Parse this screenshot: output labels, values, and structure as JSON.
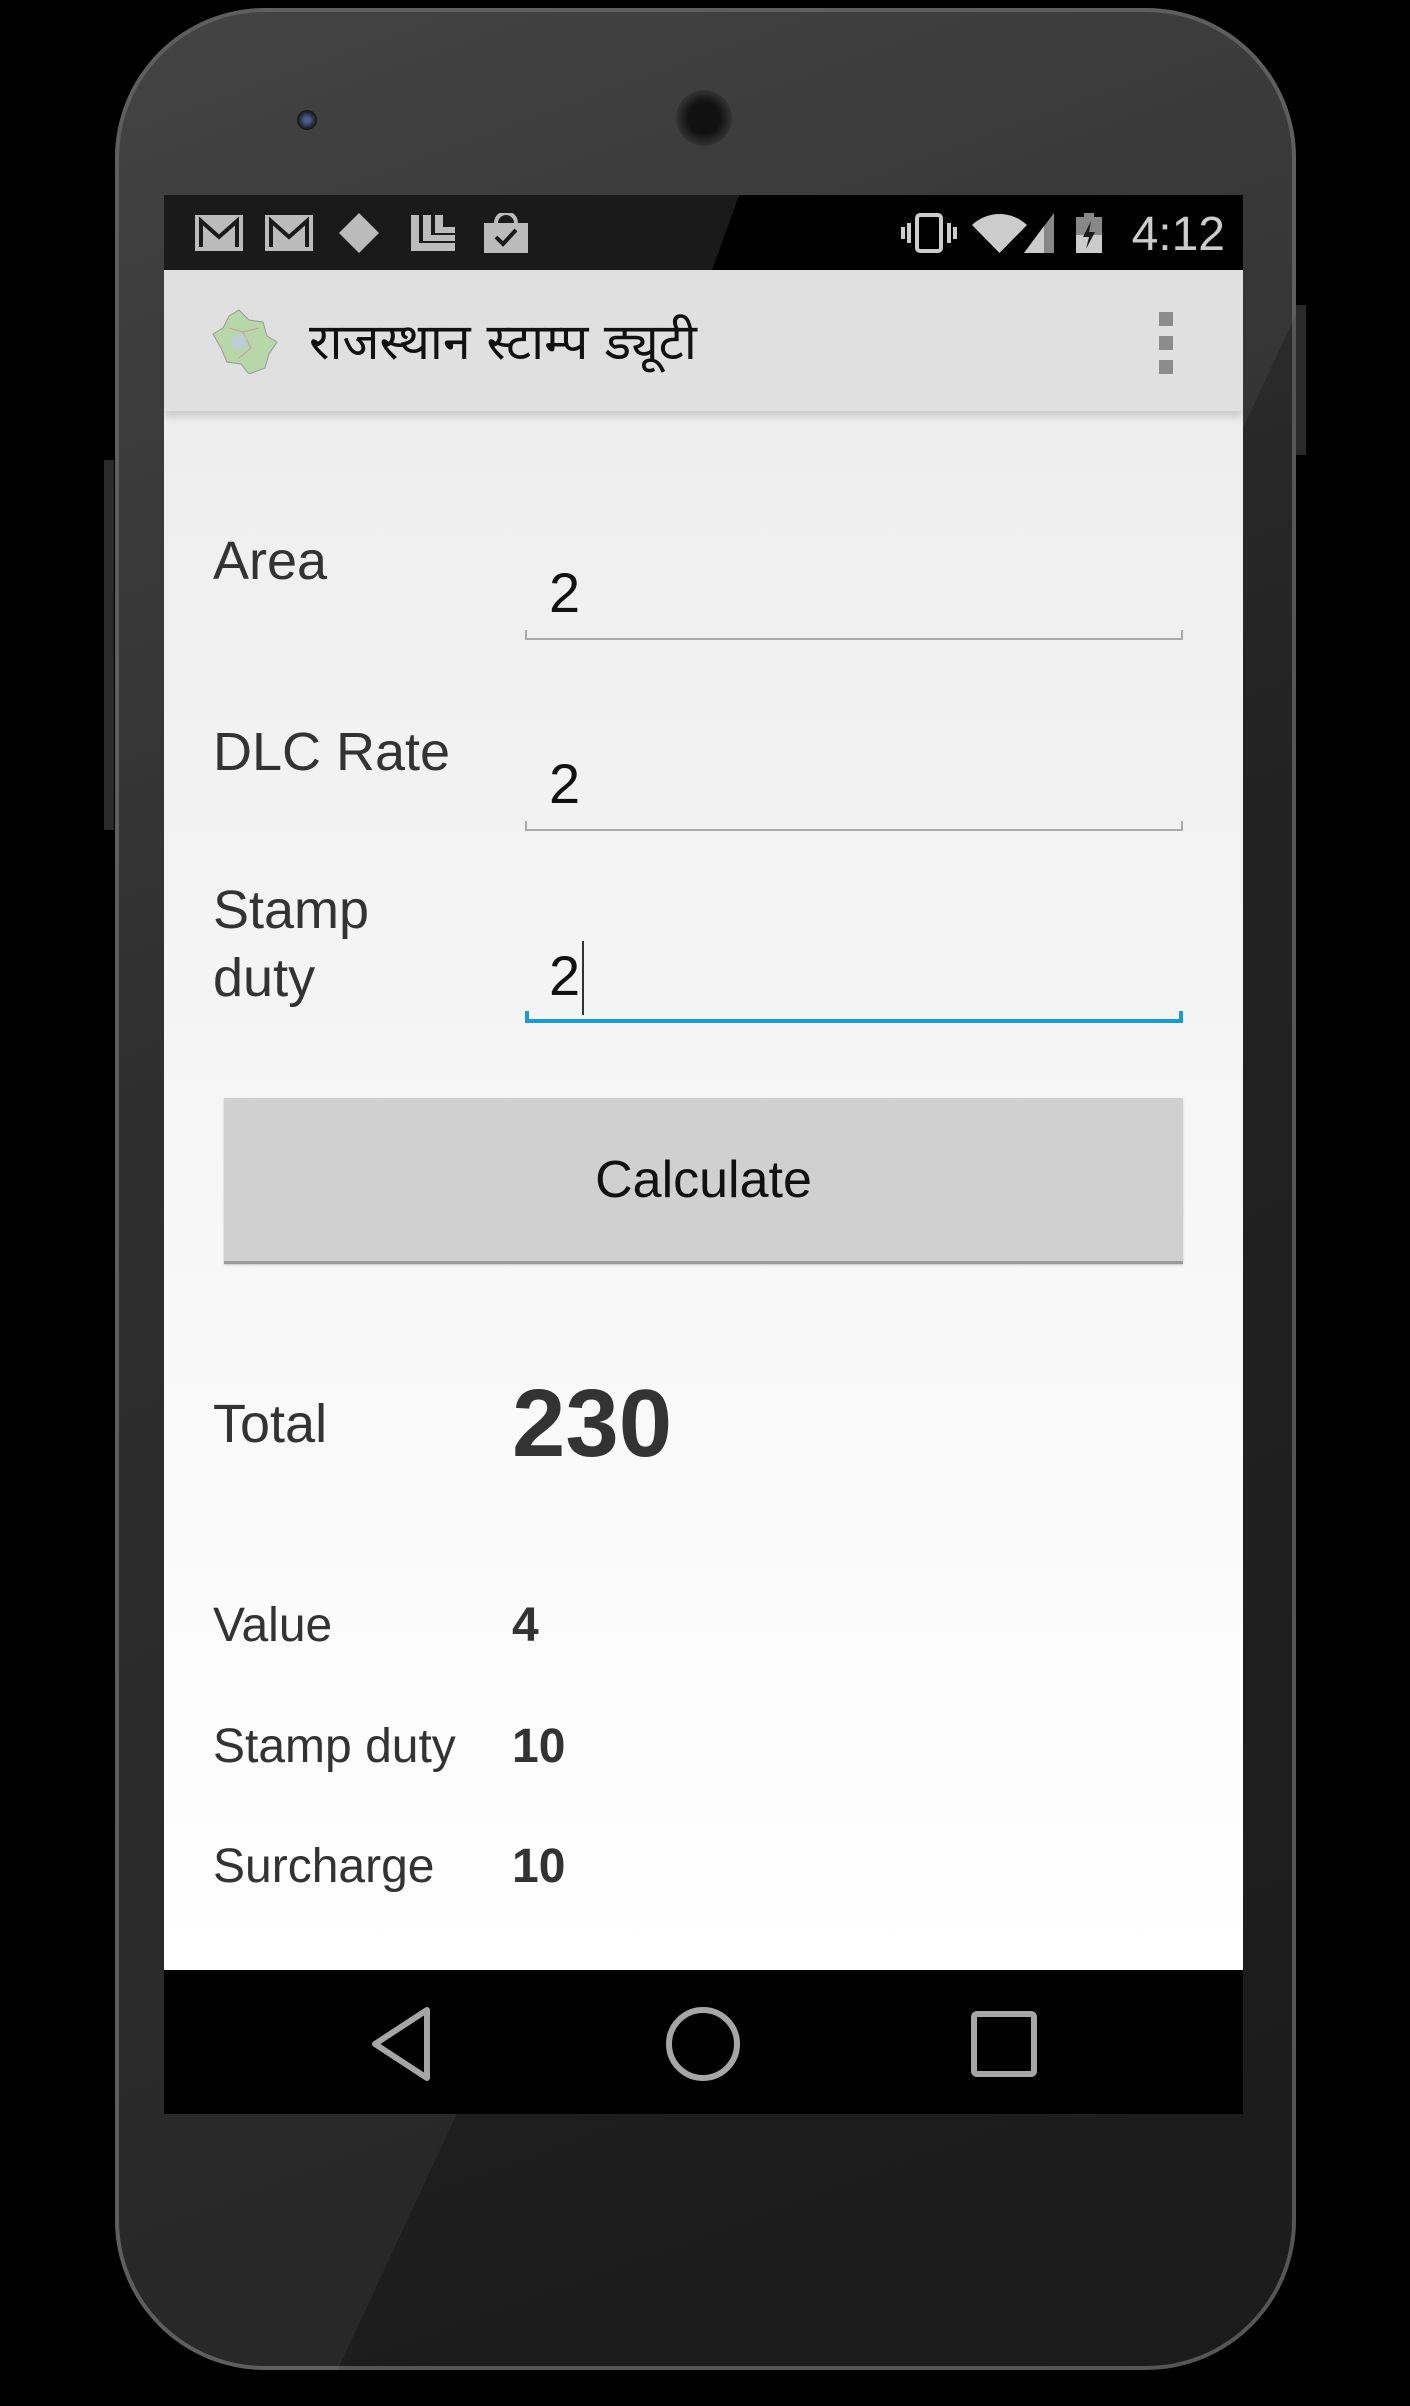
{
  "status_bar": {
    "notification_icons": [
      "gmail-icon",
      "gmail-icon",
      "pinwheel-icon",
      "stack-icon",
      "shopping-bag-check-icon"
    ],
    "system_icons": [
      "vibrate-icon",
      "wifi-icon",
      "signal-icon",
      "battery-charging-icon"
    ],
    "time": "4:12"
  },
  "action_bar": {
    "app_icon": "rajasthan-map-icon",
    "title": "राजस्थान स्टाम्प ड्यूटी",
    "overflow_icon": "more-vert-icon"
  },
  "form": {
    "area": {
      "label": "Area",
      "value": "2"
    },
    "dlc_rate": {
      "label": "DLC Rate",
      "value": "2"
    },
    "stamp_duty": {
      "label_line1": "Stamp",
      "label_line2": "duty",
      "value": "2"
    },
    "calculate_label": "Calculate"
  },
  "results": {
    "total": {
      "label": "Total",
      "value": "230"
    },
    "rows": [
      {
        "label": "Value",
        "value": "4"
      },
      {
        "label": "Stamp duty",
        "value": "10"
      },
      {
        "label": "Surcharge",
        "value": "10"
      }
    ]
  },
  "colors": {
    "accent": "#1a9bd1",
    "action_bar": "#e0e0e0",
    "button": "#d0d0d0"
  },
  "nav_bar": {
    "icons": [
      "back-icon",
      "home-icon",
      "recents-icon"
    ]
  }
}
